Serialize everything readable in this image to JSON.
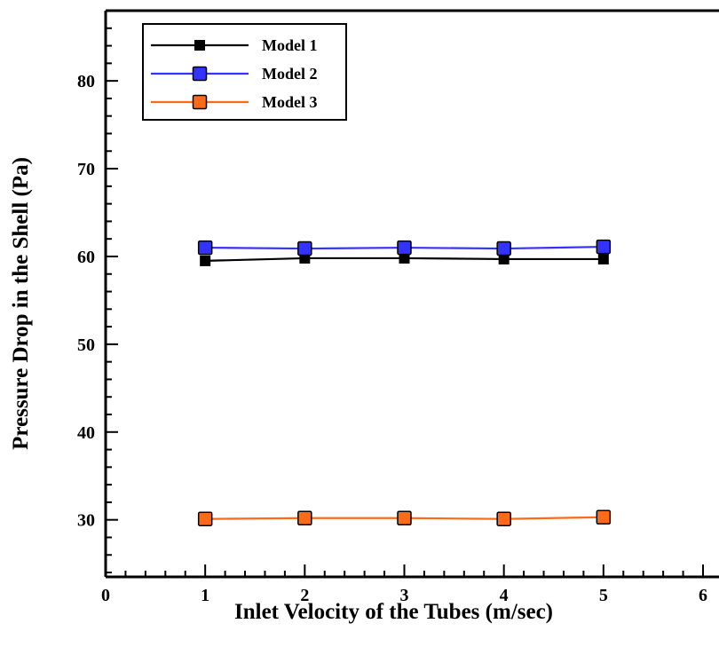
{
  "chart_data": {
    "type": "line",
    "xlabel": "Inlet Velocity of the Tubes (m/sec)",
    "ylabel": "Pressure Drop in the Shell (Pa)",
    "xlim": [
      0,
      6
    ],
    "ylim": [
      23.5,
      88
    ],
    "x_ticks": [
      "0",
      "1",
      "2",
      "3",
      "4",
      "5",
      "6"
    ],
    "y_ticks": [
      "30",
      "40",
      "50",
      "60",
      "70",
      "80"
    ],
    "grid": false,
    "legend_position": "top-left",
    "x": [
      1,
      2,
      3,
      4,
      5
    ],
    "series": [
      {
        "name": "Model 1",
        "color": "#000000",
        "marker": "filled-square-small",
        "values": [
          59.5,
          59.8,
          59.8,
          59.7,
          59.7
        ]
      },
      {
        "name": "Model 2",
        "color": "#3333ff",
        "marker": "square",
        "values": [
          61.0,
          60.9,
          61.0,
          60.9,
          61.1
        ]
      },
      {
        "name": "Model 3",
        "color": "#ff6a1a",
        "marker": "square",
        "values": [
          30.1,
          30.2,
          30.2,
          30.1,
          30.3
        ]
      }
    ]
  }
}
